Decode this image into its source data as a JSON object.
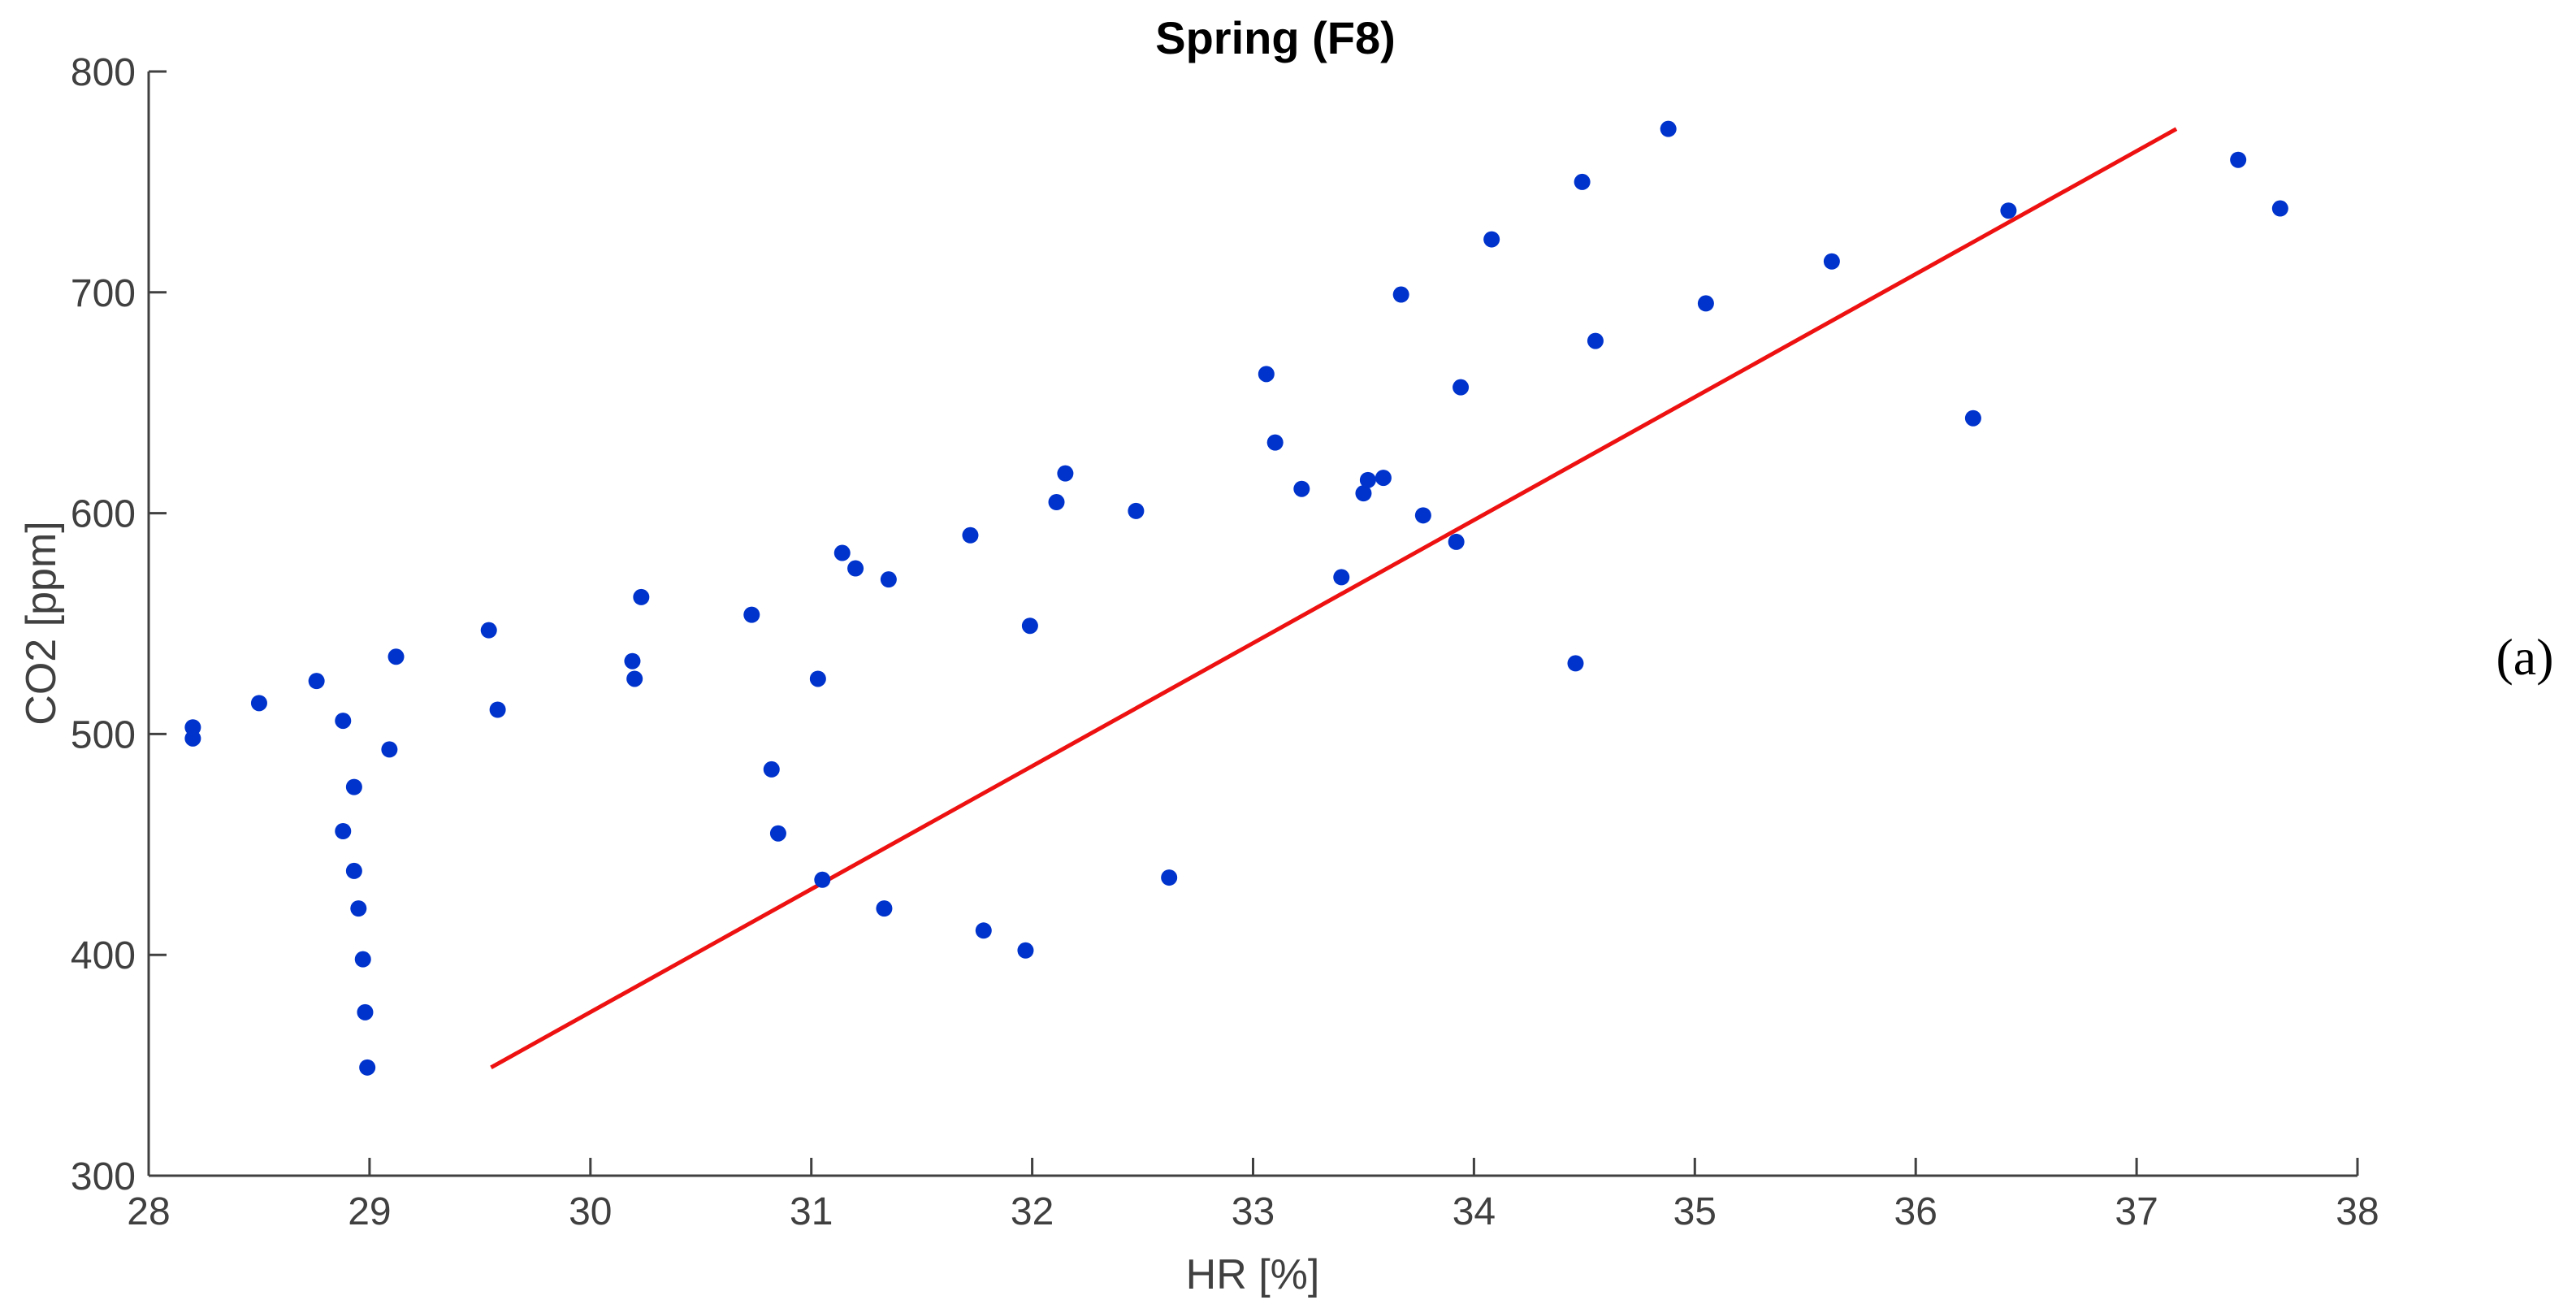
{
  "chart_data": {
    "type": "scatter",
    "title": "Spring (F8)",
    "xlabel": "HR [%]",
    "ylabel": "CO2 [ppm]",
    "xlim": [
      28,
      38
    ],
    "ylim": [
      300,
      800
    ],
    "xticks": [
      "28",
      "29",
      "30",
      "31",
      "32",
      "33",
      "34",
      "35",
      "36",
      "37",
      "38"
    ],
    "yticks": [
      "300",
      "400",
      "500",
      "600",
      "700",
      "800"
    ],
    "grid": false,
    "point_color": "#0033cc",
    "line_color": "#ee1111",
    "points": [
      [
        28.2,
        503
      ],
      [
        28.2,
        498
      ],
      [
        28.5,
        514
      ],
      [
        28.76,
        524
      ],
      [
        28.88,
        506
      ],
      [
        28.88,
        456
      ],
      [
        28.93,
        476
      ],
      [
        28.93,
        438
      ],
      [
        28.95,
        421
      ],
      [
        28.97,
        398
      ],
      [
        28.98,
        374
      ],
      [
        28.99,
        349
      ],
      [
        29.09,
        493
      ],
      [
        29.12,
        535
      ],
      [
        29.54,
        547
      ],
      [
        29.58,
        511
      ],
      [
        30.19,
        533
      ],
      [
        30.2,
        525
      ],
      [
        30.23,
        562
      ],
      [
        30.73,
        554
      ],
      [
        30.82,
        484
      ],
      [
        30.85,
        455
      ],
      [
        31.03,
        525
      ],
      [
        31.05,
        434
      ],
      [
        31.14,
        582
      ],
      [
        31.2,
        575
      ],
      [
        31.33,
        421
      ],
      [
        31.35,
        570
      ],
      [
        31.72,
        590
      ],
      [
        31.78,
        411
      ],
      [
        31.97,
        402
      ],
      [
        31.99,
        549
      ],
      [
        32.11,
        605
      ],
      [
        32.15,
        618
      ],
      [
        32.47,
        601
      ],
      [
        32.62,
        435
      ],
      [
        33.06,
        663
      ],
      [
        33.1,
        632
      ],
      [
        33.22,
        611
      ],
      [
        33.4,
        571
      ],
      [
        33.5,
        609
      ],
      [
        33.52,
        615
      ],
      [
        33.59,
        616
      ],
      [
        33.67,
        699
      ],
      [
        33.77,
        599
      ],
      [
        33.92,
        587
      ],
      [
        33.94,
        657
      ],
      [
        34.08,
        724
      ],
      [
        34.46,
        532
      ],
      [
        34.49,
        750
      ],
      [
        34.55,
        678
      ],
      [
        34.88,
        774
      ],
      [
        35.05,
        695
      ],
      [
        35.62,
        714
      ],
      [
        36.26,
        643
      ],
      [
        36.42,
        737
      ],
      [
        37.46,
        760
      ],
      [
        37.65,
        738
      ]
    ],
    "fit_line": [
      [
        29.55,
        349
      ],
      [
        37.18,
        774
      ]
    ]
  },
  "panel_label": "(a)"
}
